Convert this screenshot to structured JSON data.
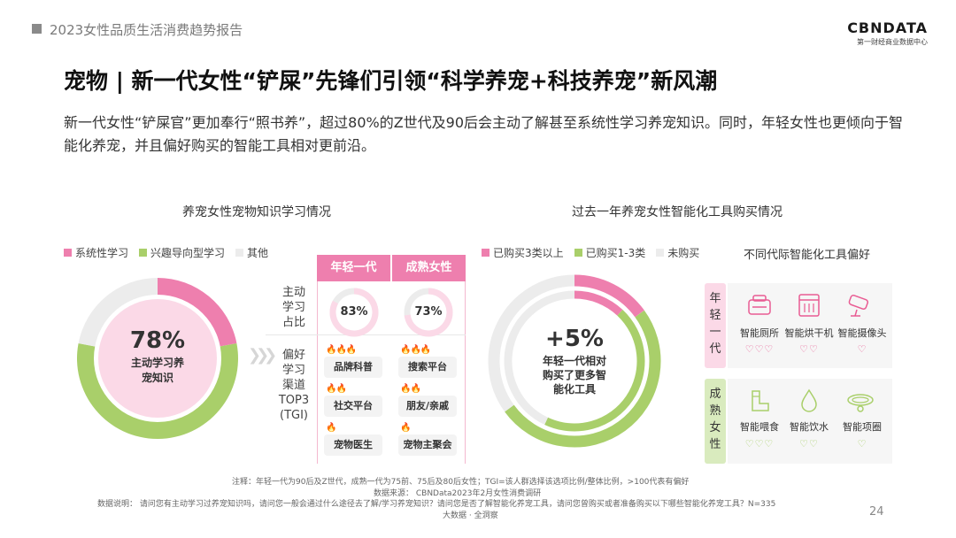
{
  "header": {
    "report_title": "2023女性品质生活消费趋势报告",
    "logo": "CBNDATA",
    "logo_sub": "第一财经商业数据中心"
  },
  "page_title": "宠物 | 新一代女性“铲屎”先锋们引领“科学养宠+科技养宠”新风潮",
  "intro": "新一代女性“铲屎官”更加奉行“照书养”，超过80%的Z世代及90后会主动了解甚至系统性学习养宠知识。同时，年轻女性也更倾向于智能化养宠，并且偏好购买的智能工具相对更前沿。",
  "left_section": {
    "title": "养宠女性宠物知识学习情况",
    "legend": [
      "系统性学习",
      "兴趣导向型学习",
      "其他"
    ],
    "center_value": "78%",
    "center_label_lines": [
      "主动学习养",
      "宠知识"
    ],
    "columns": [
      "年轻一代",
      "成熟女性"
    ],
    "row1_label_lines": [
      "主动",
      "学习",
      "占比"
    ],
    "row2_label_lines": [
      "偏好",
      "学习",
      "渠道",
      "TOP3",
      "(TGI)"
    ],
    "young_channels": [
      {
        "name": "品牌科普",
        "flames": "🔥🔥🔥"
      },
      {
        "name": "社交平台",
        "flames": "🔥🔥"
      },
      {
        "name": "宠物医生",
        "flames": "🔥"
      }
    ],
    "mature_channels": [
      {
        "name": "搜索平台",
        "flames": "🔥🔥🔥"
      },
      {
        "name": "朋友/亲戚",
        "flames": "🔥🔥"
      },
      {
        "name": "宠物主聚会",
        "flames": "🔥"
      }
    ]
  },
  "right_section": {
    "title": "过去一年养宠女性智能化工具购买情况",
    "legend": [
      "已购买3类以上",
      "已购买1-3类",
      "未购买"
    ],
    "center_value": "+5%",
    "center_label_lines": [
      "年轻一代相对",
      "购买了更多智",
      "能化工具"
    ],
    "pref_title": "不同代际智能化工具偏好",
    "young_band_lines": [
      "年",
      "轻",
      "一",
      "代"
    ],
    "mature_band_lines": [
      "成",
      "熟",
      "女",
      "性"
    ],
    "young_tools": [
      {
        "name": "智能厕所",
        "icon": "litter-box-icon",
        "hearts": "♡♡♡"
      },
      {
        "name": "智能烘干机",
        "icon": "pet-dryer-icon",
        "hearts": "♡♡"
      },
      {
        "name": "智能摄像头",
        "icon": "camera-icon",
        "hearts": "♡"
      }
    ],
    "mature_tools": [
      {
        "name": "智能喂食",
        "icon": "feeder-icon",
        "hearts": "♡♡♡"
      },
      {
        "name": "智能饮水",
        "icon": "water-drop-icon",
        "hearts": "♡♡"
      },
      {
        "name": "智能项圈",
        "icon": "collar-icon",
        "hearts": "♡"
      }
    ]
  },
  "notes": {
    "note1": "注释：年轻一代为90后及Z世代，成熟一代为75前、75后及80后女性；TGI=该人群选择该选项比例/整体比例，>100代表有偏好",
    "source": "数据来源：  CBNData2023年2月女性消费调研",
    "explain": "数据说明：  请问您有主动学习过养宠知识吗，请问您一般会通过什么途径去了解/学习养宠知识？请问您是否了解智能化养宠工具，请问您曾购买或者准备购买以下哪些智能化养宠工具？N=335",
    "tagline": "大数据 · 全洞察",
    "page_number": "24"
  },
  "colors": {
    "pink": "#ee7fae",
    "light_pink": "#fbd9e7",
    "green": "#a9cf6a",
    "grey": "#ececec"
  },
  "chart_data": [
    {
      "type": "pie",
      "title": "养宠女性宠物知识学习情况",
      "series": [
        {
          "name": "系统性学习",
          "values": [
            22
          ]
        },
        {
          "name": "兴趣导向型学习",
          "values": [
            56
          ]
        },
        {
          "name": "其他",
          "values": [
            22
          ]
        }
      ],
      "center_value": "78%",
      "legend_position": "top-left"
    },
    {
      "type": "pie",
      "title": "主动学习占比",
      "categories": [
        "年轻一代",
        "成熟女性"
      ],
      "values": [
        83,
        73
      ],
      "unit": "%"
    },
    {
      "type": "pie",
      "title": "过去一年养宠女性智能化工具购买情况",
      "series": [
        {
          "name": "已购买3类以上",
          "values": [
            15
          ]
        },
        {
          "name": "已购买1-3类",
          "values": [
            50
          ]
        },
        {
          "name": "未购买",
          "values": [
            35
          ]
        }
      ],
      "center_value": "+5%",
      "legend_position": "top-left"
    }
  ]
}
